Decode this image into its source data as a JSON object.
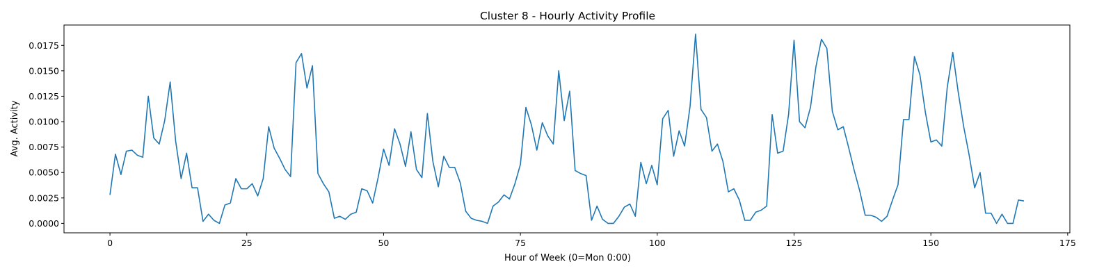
{
  "chart_data": {
    "type": "line",
    "title": "Cluster 8 - Hourly Activity Profile",
    "xlabel": "Hour of Week (0=Mon 0:00)",
    "ylabel": "Avg. Activity",
    "xlim": [
      -8.4,
      175.4
    ],
    "ylim": [
      -0.00093,
      0.0195
    ],
    "xticks": [
      0,
      25,
      50,
      75,
      100,
      125,
      150,
      175
    ],
    "yticks": [
      0.0,
      0.0025,
      0.005,
      0.0075,
      0.01,
      0.0125,
      0.015,
      0.0175
    ],
    "ytick_labels": [
      "0.0000",
      "0.0025",
      "0.0050",
      "0.0075",
      "0.0100",
      "0.0125",
      "0.0150",
      "0.0175"
    ],
    "grid": false,
    "line_color": "#1f77b4",
    "series": [
      {
        "x": [
          0,
          1,
          2,
          3,
          4,
          5,
          6,
          7,
          8,
          9,
          10,
          11,
          12,
          13,
          14,
          15,
          16,
          17,
          18,
          19,
          20,
          21,
          22,
          23,
          24,
          25,
          26,
          27,
          28,
          29,
          30,
          31,
          32,
          33,
          34,
          35,
          36,
          37,
          38,
          39,
          40,
          41,
          42,
          43,
          44,
          45,
          46,
          47,
          48,
          49,
          50,
          51,
          52,
          53,
          54,
          55,
          56,
          57,
          58,
          59,
          60,
          61,
          62,
          63,
          64,
          65,
          66,
          67,
          68,
          69,
          70,
          71,
          72,
          73,
          74,
          75,
          76,
          77,
          78,
          79,
          80,
          81,
          82,
          83,
          84,
          85,
          86,
          87,
          88,
          89,
          90,
          91,
          92,
          93,
          94,
          95,
          96,
          97,
          98,
          99,
          100,
          101,
          102,
          103,
          104,
          105,
          106,
          107,
          108,
          109,
          110,
          111,
          112,
          113,
          114,
          115,
          116,
          117,
          118,
          119,
          120,
          121,
          122,
          123,
          124,
          125,
          126,
          127,
          128,
          129,
          130,
          131,
          132,
          133,
          134,
          135,
          136,
          137,
          138,
          139,
          140,
          141,
          142,
          143,
          144,
          145,
          146,
          147,
          148,
          149,
          150,
          151,
          152,
          153,
          154,
          155,
          156,
          157,
          158,
          159,
          160,
          161,
          162,
          163,
          164,
          165,
          166,
          167
        ],
        "values": [
          0.0028,
          0.0068,
          0.0048,
          0.0071,
          0.0072,
          0.0067,
          0.0065,
          0.0125,
          0.0084,
          0.0078,
          0.0101,
          0.0139,
          0.0081,
          0.0044,
          0.0069,
          0.0035,
          0.0035,
          0.0002,
          0.0009,
          0.0003,
          0.0,
          0.0018,
          0.002,
          0.0044,
          0.0034,
          0.0034,
          0.0039,
          0.0027,
          0.0044,
          0.0095,
          0.0074,
          0.0064,
          0.0053,
          0.0046,
          0.0158,
          0.0167,
          0.0133,
          0.0155,
          0.0049,
          0.0039,
          0.0031,
          0.0005,
          0.0007,
          0.0004,
          0.0009,
          0.0011,
          0.0034,
          0.0032,
          0.002,
          0.0045,
          0.0073,
          0.0057,
          0.0093,
          0.0078,
          0.0056,
          0.009,
          0.0053,
          0.0045,
          0.0108,
          0.0061,
          0.0036,
          0.0066,
          0.0055,
          0.0055,
          0.004,
          0.0012,
          0.0005,
          0.0003,
          0.0002,
          0.0,
          0.0017,
          0.0021,
          0.0028,
          0.0024,
          0.0039,
          0.0058,
          0.0114,
          0.0097,
          0.0072,
          0.0099,
          0.0086,
          0.0078,
          0.015,
          0.0101,
          0.013,
          0.0052,
          0.0049,
          0.0047,
          0.0003,
          0.0017,
          0.0004,
          0.0,
          0.0,
          0.0007,
          0.0016,
          0.0019,
          0.0007,
          0.006,
          0.0039,
          0.0057,
          0.0038,
          0.0103,
          0.0111,
          0.0066,
          0.0091,
          0.0076,
          0.0115,
          0.0186,
          0.0112,
          0.0104,
          0.0071,
          0.0078,
          0.0061,
          0.0031,
          0.0034,
          0.0023,
          0.0003,
          0.0003,
          0.0011,
          0.0013,
          0.0017,
          0.0107,
          0.0069,
          0.0071,
          0.0107,
          0.018,
          0.01,
          0.0094,
          0.0114,
          0.0154,
          0.0181,
          0.0172,
          0.011,
          0.0092,
          0.0095,
          0.0074,
          0.0052,
          0.0032,
          0.0008,
          0.0008,
          0.0006,
          0.0002,
          0.0007,
          0.0023,
          0.0038,
          0.0102,
          0.0102,
          0.0164,
          0.0146,
          0.0109,
          0.008,
          0.0082,
          0.0076,
          0.0134,
          0.0168,
          0.0129,
          0.0095,
          0.0067,
          0.0035,
          0.005,
          0.001,
          0.001,
          0.0,
          0.0009,
          0.0,
          0.0,
          0.0023,
          0.0022
        ]
      }
    ]
  }
}
